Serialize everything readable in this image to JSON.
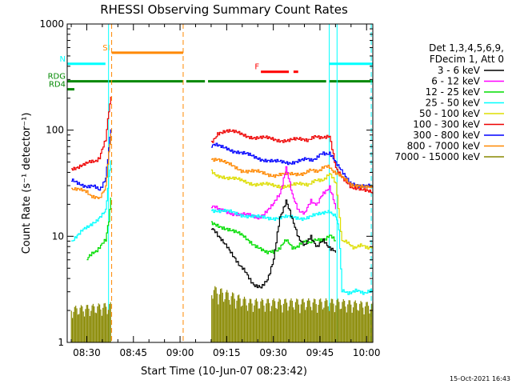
{
  "chart_data": {
    "type": "line",
    "title": "RHESSI Observing Summary Count Rates",
    "xlabel": "Start Time (10-Jun-07 08:23:42)",
    "ylabel": "Count Rate (s⁻¹ detector⁻¹)",
    "y_scale": "log",
    "ylim": [
      1,
      1000
    ],
    "xlim_minutes": [
      23.7,
      122.0
    ],
    "x_ticks": [
      {
        "label": "08:30",
        "min": 30
      },
      {
        "label": "08:45",
        "min": 45
      },
      {
        "label": "09:00",
        "min": 60
      },
      {
        "label": "09:15",
        "min": 75
      },
      {
        "label": "09:30",
        "min": 90
      },
      {
        "label": "09:45",
        "min": 105
      },
      {
        "label": "10:00",
        "min": 120
      }
    ],
    "y_ticks": [
      {
        "label": "1",
        "value": 1
      },
      {
        "label": "10",
        "value": 10
      },
      {
        "label": "100",
        "value": 100
      },
      {
        "label": "1000",
        "value": 1000
      }
    ],
    "legend": {
      "placement": "right",
      "header": [
        "Det 1,3,4,5,6,9,",
        "FDecim 1, Att 0"
      ],
      "entries": [
        {
          "label": "3 - 6 keV",
          "color": "#000000"
        },
        {
          "label": "6 - 12 keV",
          "color": "#ff00ff"
        },
        {
          "label": "12 - 25 keV",
          "color": "#00dd00"
        },
        {
          "label": "25 - 50 keV",
          "color": "#00ffff"
        },
        {
          "label": "50 - 100 keV",
          "color": "#dddd00"
        },
        {
          "label": "100 - 300 keV",
          "color": "#ee0000"
        },
        {
          "label": "300 - 800 keV",
          "color": "#0000ff"
        },
        {
          "label": "800 - 7000 keV",
          "color": "#ff8800"
        },
        {
          "label": "7000 - 15000 keV",
          "color": "#888800"
        }
      ]
    },
    "segments": [
      [
        25,
        38
      ],
      [
        70,
        122
      ]
    ],
    "series": [
      {
        "color": "#ee0000",
        "x": [
          25,
          30,
          34,
          36,
          37,
          38,
          70,
          72,
          75,
          80,
          85,
          90,
          95,
          100,
          104,
          106,
          108,
          110,
          115,
          118,
          121,
          122
        ],
        "y": [
          44,
          48,
          55,
          80,
          150,
          240,
          75,
          95,
          100,
          90,
          85,
          82,
          80,
          82,
          85,
          88,
          85,
          45,
          28,
          27,
          26,
          25
        ]
      },
      {
        "color": "#0000ff",
        "x": [
          25,
          30,
          34,
          36,
          37,
          38,
          70,
          72,
          75,
          80,
          85,
          90,
          95,
          100,
          104,
          106,
          108,
          110,
          115,
          118,
          121,
          122
        ],
        "y": [
          33,
          30,
          28,
          35,
          70,
          130,
          70,
          72,
          68,
          60,
          55,
          50,
          50,
          52,
          55,
          60,
          62,
          48,
          32,
          30,
          30,
          29
        ]
      },
      {
        "color": "#ff8800",
        "x": [
          25,
          30,
          34,
          36,
          37,
          38,
          70,
          72,
          75,
          80,
          85,
          90,
          95,
          100,
          104,
          106,
          108,
          110,
          115,
          118,
          121,
          122
        ],
        "y": [
          28,
          26,
          22,
          30,
          60,
          110,
          55,
          52,
          48,
          42,
          40,
          38,
          38,
          40,
          42,
          44,
          45,
          40,
          30,
          30,
          30,
          29
        ]
      },
      {
        "color": "#dddd00",
        "x": [
          70,
          72,
          75,
          80,
          85,
          90,
          95,
          100,
          104,
          106,
          108,
          110,
          112,
          116,
          122
        ],
        "y": [
          40,
          38,
          36,
          33,
          31,
          30,
          30,
          31,
          33,
          35,
          38,
          32,
          9,
          8,
          8
        ]
      },
      {
        "color": "#ff00ff",
        "x": [
          70,
          72,
          75,
          80,
          85,
          90,
          92,
          94,
          96,
          98,
          100,
          102,
          104,
          106,
          108,
          110
        ],
        "y": [
          19,
          18,
          17,
          16,
          15,
          20,
          25,
          45,
          24,
          18,
          16,
          22,
          20,
          25,
          30,
          18
        ]
      },
      {
        "color": "#00ffff",
        "x": [
          25,
          28,
          30,
          33,
          36,
          37,
          38,
          70,
          75,
          80,
          85,
          90,
          95,
          100,
          105,
          108,
          110,
          111,
          112,
          116,
          122
        ],
        "y": [
          9,
          11,
          12,
          14,
          18,
          35,
          60,
          18,
          17,
          16,
          15,
          15,
          15,
          15,
          16,
          17,
          16,
          12,
          3,
          3,
          3
        ]
      },
      {
        "color": "#00dd00",
        "x": [
          30,
          32,
          34,
          36,
          37,
          38,
          70,
          75,
          80,
          85,
          88,
          90,
          92,
          94,
          96,
          98,
          100,
          104,
          108,
          110
        ],
        "y": [
          6,
          7,
          8,
          9,
          14,
          30,
          13,
          12,
          10,
          8,
          7,
          7,
          8,
          9,
          8,
          8,
          9,
          9,
          10,
          9
        ]
      },
      {
        "color": "#000000",
        "x": [
          70,
          72,
          75,
          78,
          80,
          82,
          84,
          86,
          88,
          90,
          92,
          94,
          96,
          98,
          100,
          102,
          104,
          106,
          108,
          110
        ],
        "y": [
          12,
          10,
          8,
          6,
          5,
          4,
          3.5,
          3.2,
          4,
          6,
          15,
          22,
          14,
          10,
          8,
          10,
          8,
          9,
          8,
          7
        ]
      }
    ],
    "noise_band": {
      "color": "#888800",
      "x": [
        25,
        38,
        70,
        82,
        90,
        100,
        108,
        110,
        122
      ],
      "y_high": [
        2.2,
        2.4,
        3.5,
        2.6,
        2.6,
        2.6,
        2.6,
        2.6,
        2.4
      ]
    },
    "flags": [
      {
        "label": "SI",
        "color": "#ff8800",
        "y_frac": 0.91,
        "spans": [
          [
            38,
            61
          ]
        ]
      },
      {
        "label": "N",
        "color": "#00ffff",
        "y_frac": 0.875,
        "spans": [
          [
            23.7,
            36
          ],
          [
            108,
            122
          ]
        ]
      },
      {
        "label": "RDG",
        "color": "#008800",
        "y_frac": 0.82,
        "spans": [
          [
            23.7,
            61
          ],
          [
            62,
            68
          ],
          [
            69,
            107
          ],
          [
            108,
            122
          ]
        ]
      },
      {
        "label": "RD4",
        "color": "#008800",
        "y_frac": 0.795,
        "spans": [
          [
            23.7,
            26
          ]
        ]
      },
      {
        "label": "F",
        "color": "#ff0000",
        "y_frac": 0.85,
        "spans": [
          [
            86,
            95
          ],
          [
            96.5,
            98
          ]
        ]
      }
    ],
    "vlines": [
      {
        "min": 37,
        "color": "#00ffff",
        "style": "solid"
      },
      {
        "min": 38,
        "color": "#ff8800",
        "style": "dashed"
      },
      {
        "min": 61,
        "color": "#ff8800",
        "style": "dashed"
      },
      {
        "min": 108,
        "color": "#00ffff",
        "style": "solid"
      },
      {
        "min": 110.5,
        "color": "#00ffff",
        "style": "solid"
      },
      {
        "min": 121.5,
        "color": "#00ffff",
        "style": "dashed"
      }
    ],
    "timestamp": "15-Oct-2021 16:43"
  }
}
